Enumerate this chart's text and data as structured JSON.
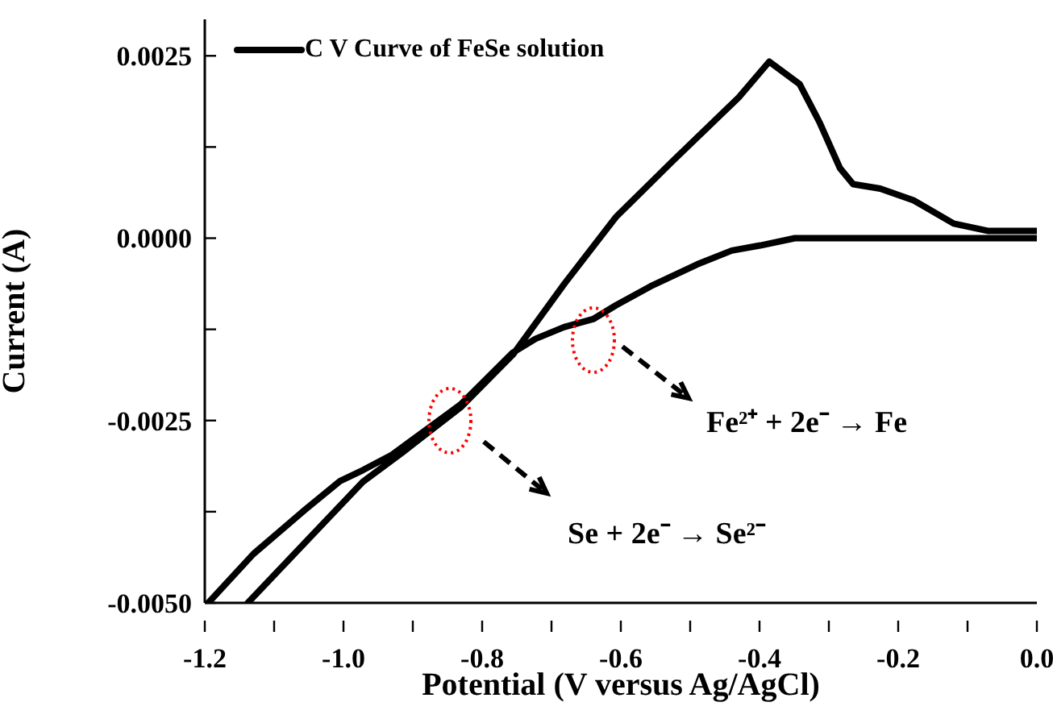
{
  "chart_data": {
    "type": "line",
    "xlabel": "Potential (V versus Ag/AgCl)",
    "ylabel": "Current (A)",
    "x": [
      0,
      -0.184,
      -0.349,
      -0.399,
      -0.44,
      -0.49,
      -0.557,
      -0.607,
      -0.64,
      -0.682,
      -0.723,
      -0.756,
      -0.831,
      -0.93,
      -0.972,
      -1.005,
      -1.055,
      -1.13,
      -1.195,
      -1.17,
      -1.138,
      -1.056,
      -0.972,
      -0.914,
      -0.831,
      -0.756,
      -0.681,
      -0.607,
      -0.526,
      -0.43,
      -0.386,
      -0.342,
      -0.313,
      -0.284,
      -0.265,
      -0.226,
      -0.178,
      -0.12,
      -0.071,
      -0.018,
      0
    ],
    "series": [
      {
        "name": "C V Curve of FeSe solution",
        "color": "#000000",
        "values": [
          0,
          0,
          0,
          -0.0001,
          -0.00017,
          -0.00036,
          -0.00066,
          -0.00092,
          -0.00111,
          -0.00122,
          -0.00138,
          -0.00157,
          -0.00228,
          -0.00297,
          -0.00318,
          -0.00333,
          -0.00372,
          -0.00433,
          -0.005,
          null,
          -0.005,
          -0.00418,
          -0.00334,
          -0.00293,
          -0.00232,
          -0.0016,
          -0.00062,
          0.00029,
          0.00105,
          0.00193,
          0.00242,
          0.00211,
          0.00158,
          0.00096,
          0.00074,
          0.00068,
          0.00052,
          0.0002,
          0.0001,
          0.0001,
          0.0001
        ]
      }
    ],
    "xlim": [
      -1.2,
      0
    ],
    "xticks": [
      {
        "value": -1.2,
        "label": "-1.2"
      },
      {
        "value": -1.1,
        "label": null
      },
      {
        "value": -1,
        "label": "-1.0"
      },
      {
        "value": -0.9,
        "label": null
      },
      {
        "value": -0.8,
        "label": "-0.8"
      },
      {
        "value": -0.7,
        "label": null
      },
      {
        "value": -0.6,
        "label": "-0.6"
      },
      {
        "value": -0.5,
        "label": null
      },
      {
        "value": -0.4,
        "label": "-0.4"
      },
      {
        "value": -0.3,
        "label": null
      },
      {
        "value": -0.2,
        "label": "-0.2"
      },
      {
        "value": -0.1,
        "label": null
      },
      {
        "value": 0,
        "label": "0.0"
      }
    ],
    "ylim": [
      -0.005,
      0.003
    ],
    "yticks": [
      {
        "value": -0.005,
        "label": "-0.0050"
      },
      {
        "value": -0.00375,
        "label": null
      },
      {
        "value": -0.0025,
        "label": "-0.0025"
      },
      {
        "value": -0.00125,
        "label": null
      },
      {
        "value": 0,
        "label": "0.0000"
      },
      {
        "value": 0.00125,
        "label": null
      },
      {
        "value": 0.0025,
        "label": "0.0025"
      }
    ],
    "legend": "top left",
    "marker": "none",
    "line_style": "solid",
    "annotations": [
      "Fe²⁺ + 2e⁻ → Fe",
      "Se + 2e⁻ → Se²⁻"
    ]
  }
}
